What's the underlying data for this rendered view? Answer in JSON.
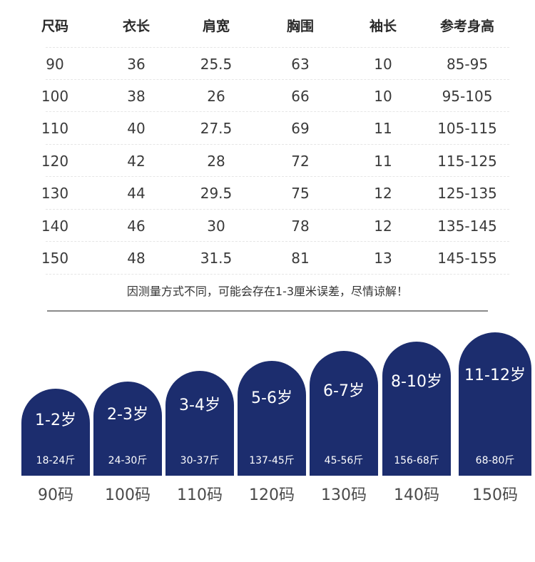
{
  "table": {
    "headers": [
      "尺码",
      "衣长",
      "肩宽",
      "胸围",
      "袖长",
      "参考身高"
    ],
    "rows": [
      [
        "90",
        "36",
        "25.5",
        "63",
        "10",
        "85-95"
      ],
      [
        "100",
        "38",
        "26",
        "66",
        "10",
        "95-105"
      ],
      [
        "110",
        "40",
        "27.5",
        "69",
        "11",
        "105-115"
      ],
      [
        "120",
        "42",
        "28",
        "72",
        "11",
        "115-125"
      ],
      [
        "130",
        "44",
        "29.5",
        "75",
        "12",
        "125-135"
      ],
      [
        "140",
        "46",
        "30",
        "78",
        "12",
        "135-145"
      ],
      [
        "150",
        "48",
        "31.5",
        "81",
        "13",
        "145-155"
      ]
    ]
  },
  "note": "因测量方式不同，可能会存在1-3厘米误差，尽情谅解！",
  "cards": [
    {
      "age": "1-2岁",
      "weight": "18-24斤",
      "size": "90码"
    },
    {
      "age": "2-3岁",
      "weight": "24-30斤",
      "size": "100码"
    },
    {
      "age": "3-4岁",
      "weight": "30-37斤",
      "size": "110码"
    },
    {
      "age": "5-6岁",
      "weight": "137-45斤",
      "size": "120码"
    },
    {
      "age": "6-7岁",
      "weight": "45-56斤",
      "size": "130码"
    },
    {
      "age": "8-10岁",
      "weight": "156-68斤",
      "size": "140码"
    },
    {
      "age": "11-12岁",
      "weight": "68-80斤",
      "size": "150码"
    }
  ],
  "colors": {
    "card_fill": "#1c2d6e",
    "text": "#333333",
    "divider": "#8a8a8a"
  }
}
